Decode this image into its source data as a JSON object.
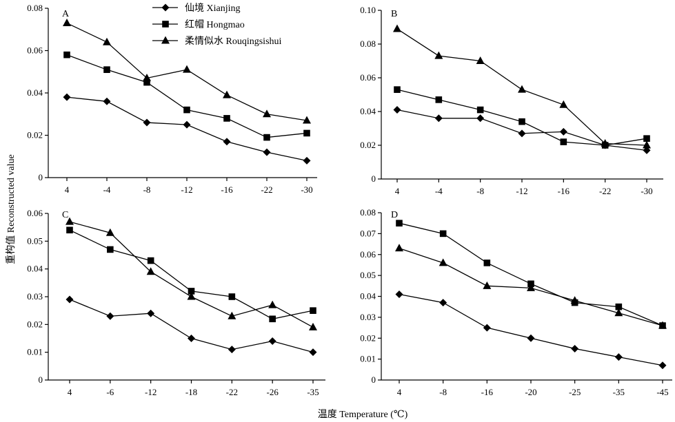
{
  "figure": {
    "ylabel": "重构值 Reconstructed value",
    "xlabel": "温度 Temperature (℃)"
  },
  "legend": [
    {
      "name": "仙境 Xianjing",
      "marker": "diamond"
    },
    {
      "name": "红帽 Hongmao",
      "marker": "square"
    },
    {
      "name": "柔情似水 Rouqingsishui",
      "marker": "triangle"
    }
  ],
  "chart_data": [
    {
      "type": "line",
      "panel": "A",
      "categories": [
        "4",
        "-4",
        "-8",
        "-12",
        "-16",
        "-22",
        "-30"
      ],
      "ylim": [
        0,
        0.08
      ],
      "yticks": [
        "0",
        "0.02",
        "0.04",
        "0.06",
        "0.08"
      ],
      "series": [
        {
          "name": "仙境 Xianjing",
          "values": [
            0.038,
            0.036,
            0.026,
            0.025,
            0.017,
            0.012,
            0.008
          ]
        },
        {
          "name": "红帽 Hongmao",
          "values": [
            0.058,
            0.051,
            0.045,
            0.032,
            0.028,
            0.019,
            0.021
          ]
        },
        {
          "name": "柔情似水 Rouqingsishui",
          "values": [
            0.073,
            0.064,
            0.047,
            0.051,
            0.039,
            0.03,
            0.027
          ]
        }
      ]
    },
    {
      "type": "line",
      "panel": "B",
      "categories": [
        "4",
        "-4",
        "-8",
        "-12",
        "-16",
        "-22",
        "-30"
      ],
      "ylim": [
        0,
        0.1
      ],
      "yticks": [
        "0",
        "0.02",
        "0.04",
        "0.06",
        "0.08",
        "0.10"
      ],
      "series": [
        {
          "name": "仙境 Xianjing",
          "values": [
            0.041,
            0.036,
            0.036,
            0.027,
            0.028,
            0.02,
            0.017
          ]
        },
        {
          "name": "红帽 Hongmao",
          "values": [
            0.053,
            0.047,
            0.041,
            0.034,
            0.022,
            0.02,
            0.024
          ]
        },
        {
          "name": "柔情似水 Rouqingsishui",
          "values": [
            0.089,
            0.073,
            0.07,
            0.053,
            0.044,
            0.021,
            0.02
          ]
        }
      ]
    },
    {
      "type": "line",
      "panel": "C",
      "categories": [
        "4",
        "-6",
        "-12",
        "-18",
        "-22",
        "-26",
        "-35"
      ],
      "ylim": [
        0,
        0.06
      ],
      "yticks": [
        "0",
        "0.01",
        "0.02",
        "0.03",
        "0.04",
        "0.05",
        "0.06"
      ],
      "series": [
        {
          "name": "仙境 Xianjing",
          "values": [
            0.029,
            0.023,
            0.024,
            0.015,
            0.011,
            0.014,
            0.01
          ]
        },
        {
          "name": "红帽 Hongmao",
          "values": [
            0.054,
            0.047,
            0.043,
            0.032,
            0.03,
            0.022,
            0.025
          ]
        },
        {
          "name": "柔情似水 Rouqingsishui",
          "values": [
            0.057,
            0.053,
            0.039,
            0.03,
            0.023,
            0.027,
            0.019
          ]
        }
      ]
    },
    {
      "type": "line",
      "panel": "D",
      "categories": [
        "4",
        "-8",
        "-16",
        "-20",
        "-25",
        "-35",
        "-45"
      ],
      "ylim": [
        0,
        0.08
      ],
      "yticks": [
        "0",
        "0.01",
        "0.02",
        "0.03",
        "0.04",
        "0.05",
        "0.06",
        "0.07",
        "0.08"
      ],
      "series": [
        {
          "name": "仙境 Xianjing",
          "values": [
            0.041,
            0.037,
            0.025,
            0.02,
            0.015,
            0.011,
            0.007
          ]
        },
        {
          "name": "红帽 Hongmao",
          "values": [
            0.075,
            0.07,
            0.056,
            0.046,
            0.037,
            0.035,
            0.026
          ]
        },
        {
          "name": "柔情似水 Rouqingsishui",
          "values": [
            0.063,
            0.056,
            0.045,
            0.044,
            0.038,
            0.032,
            0.026
          ]
        }
      ]
    }
  ]
}
